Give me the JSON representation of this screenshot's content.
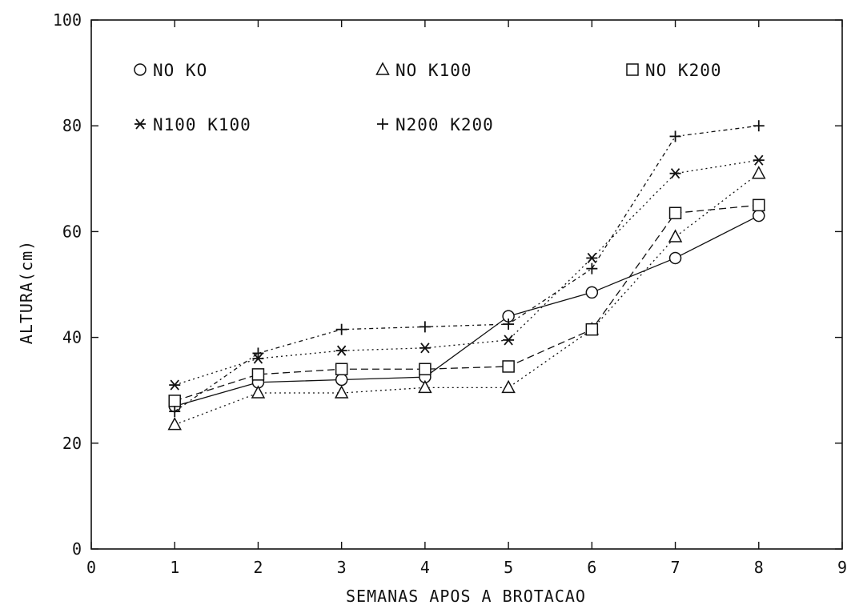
{
  "chart_data": {
    "type": "line",
    "title": "",
    "xlabel": "SEMANAS APOS A BROTACAO",
    "ylabel": "ALTURA(cm)",
    "xlim": [
      0,
      9
    ],
    "ylim": [
      0,
      100
    ],
    "xticks": [
      0,
      1,
      2,
      3,
      4,
      5,
      6,
      7,
      8,
      9
    ],
    "yticks": [
      0,
      20,
      40,
      60,
      80,
      100
    ],
    "grid": false,
    "legend_position": "top-left",
    "x": [
      1,
      2,
      3,
      4,
      5,
      6,
      7,
      8
    ],
    "series": [
      {
        "name": "NO KO",
        "marker": "circle",
        "line": "solid",
        "values": [
          27,
          31.5,
          32,
          32.5,
          44,
          48.5,
          55,
          63
        ]
      },
      {
        "name": "NO K100",
        "marker": "triangle",
        "line": "dotted",
        "values": [
          23.5,
          29.5,
          29.5,
          30.5,
          30.5,
          41.5,
          59,
          71
        ]
      },
      {
        "name": "NO K200",
        "marker": "square",
        "line": "dashed",
        "values": [
          28,
          33,
          34,
          34,
          34.5,
          41.5,
          63.5,
          65
        ]
      },
      {
        "name": "N100 K100",
        "marker": "asterisk",
        "line": "dotted",
        "values": [
          31,
          36,
          37.5,
          38,
          39.5,
          55,
          71,
          73.5
        ]
      },
      {
        "name": "N200 K200",
        "marker": "plus",
        "line": "dashdot",
        "values": [
          26,
          37,
          41.5,
          42,
          42.5,
          53,
          78,
          80
        ]
      }
    ]
  }
}
